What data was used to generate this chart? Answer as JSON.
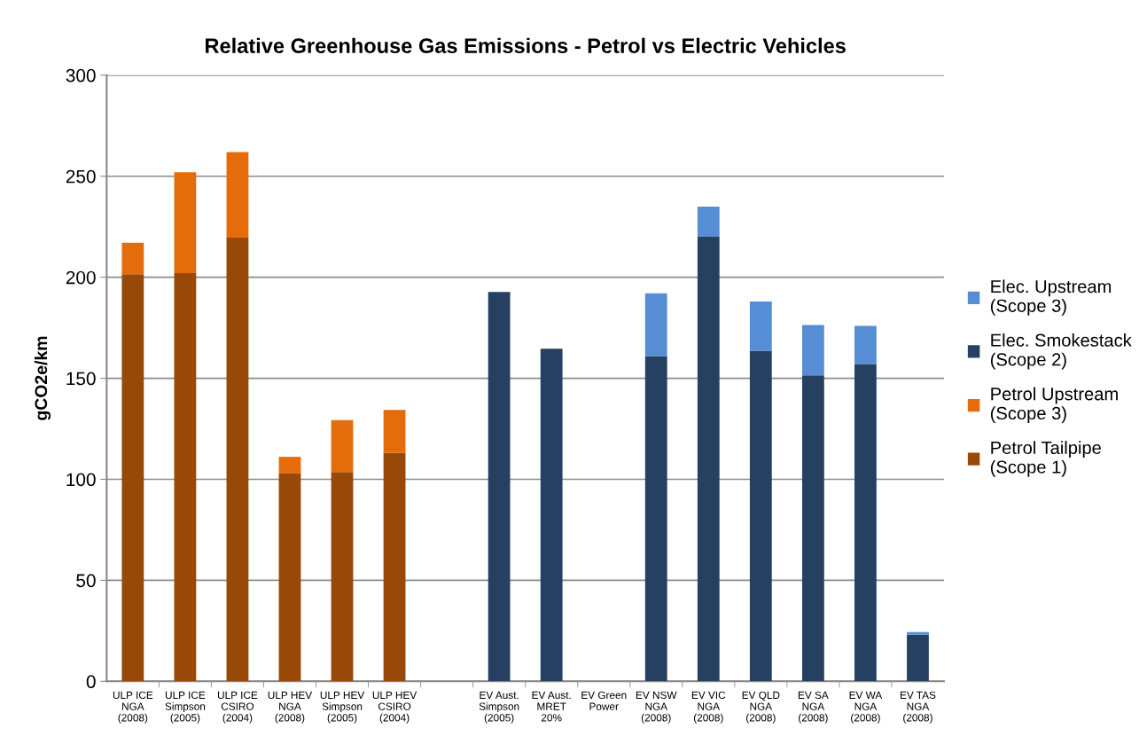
{
  "chart_data": {
    "type": "bar",
    "stacked": true,
    "title": "Relative Greenhouse Gas Emissions - Petrol vs Electric Vehicles",
    "ylabel": "gCO2e/km",
    "categories": [
      "ULP ICE\nNGA\n(2008)",
      "ULP ICE\nSimpson\n(2005)",
      "ULP ICE\nCSIRO\n(2004)",
      "ULP HEV\nNGA\n(2008)",
      "ULP HEV\nSimpson\n(2005)",
      "ULP HEV\nCSIRO\n(2004)",
      null,
      "EV Aust.\nSimpson\n(2005)",
      "EV Aust.\nMRET\n20%",
      "EV Green\nPower",
      "EV NSW\nNGA\n(2008)",
      "EV VIC\nNGA\n(2008)",
      "EV QLD\nNGA\n(2008)",
      "EV SA\nNGA\n(2008)",
      "EV WA\nNGA\n(2008)",
      "EV TAS\nNGA\n(2008)"
    ],
    "series": [
      {
        "name": "Petrol Tailpipe\n(Scope 1)",
        "color": "#984807",
        "values": [
          201.5,
          202,
          219.6,
          102.9,
          103.6,
          113,
          null,
          null,
          null,
          null,
          null,
          null,
          null,
          null,
          null,
          null
        ]
      },
      {
        "name": "Petrol Upstream\n(Scope 3)",
        "color": "#e46c0a",
        "values": [
          15.6,
          50,
          42.4,
          8.2,
          25.7,
          21.3,
          null,
          null,
          null,
          null,
          null,
          null,
          null,
          null,
          null,
          null
        ]
      },
      {
        "name": "Elec. Smokestack\n(Scope 2)",
        "color": "#254061",
        "values": [
          null,
          null,
          null,
          null,
          null,
          null,
          null,
          192.7,
          164.6,
          0,
          161,
          220,
          163.6,
          151.4,
          157,
          23.1
        ]
      },
      {
        "name": "Elec. Upstream\n(Scope 3)",
        "color": "#558ed5",
        "values": [
          null,
          null,
          null,
          null,
          null,
          null,
          null,
          0,
          0,
          0,
          31,
          15,
          24.4,
          25,
          18.9,
          1.3
        ]
      }
    ],
    "ylim": [
      0,
      300
    ],
    "yticks": [
      0,
      50,
      100,
      150,
      200,
      250,
      300
    ],
    "grid": "y",
    "legend": "right"
  }
}
